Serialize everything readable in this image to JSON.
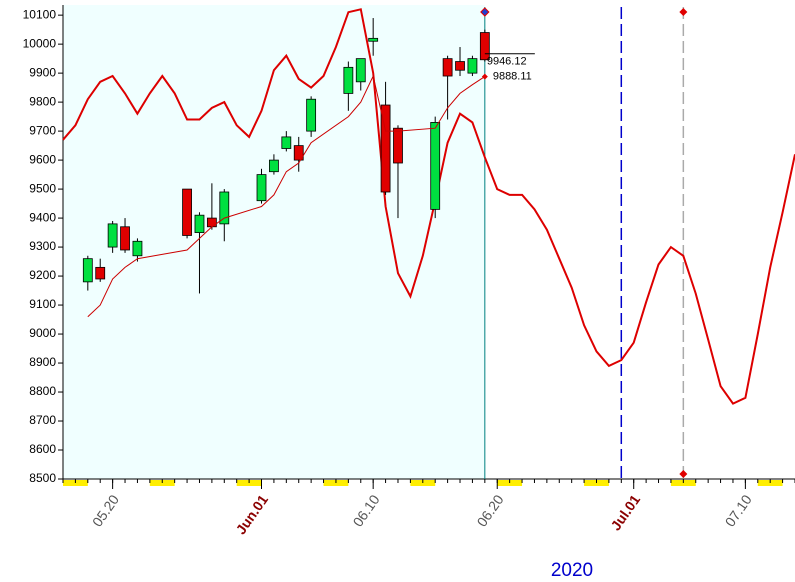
{
  "chart_data": {
    "type": "candlestick",
    "year_label": "2020",
    "xlim": [
      "2020-05-16",
      "2020-07-14"
    ],
    "ylim": [
      8500,
      10135
    ],
    "yticks": [
      8500,
      8600,
      8700,
      8800,
      8900,
      9000,
      9100,
      9200,
      9300,
      9400,
      9500,
      9600,
      9700,
      9800,
      9900,
      10000,
      10100
    ],
    "xticks": [
      {
        "value": "2020-05-20",
        "label": "05.20",
        "color": "#555555"
      },
      {
        "value": "2020-06-01",
        "label": "Jun.01",
        "color": "#8b0000"
      },
      {
        "value": "2020-06-10",
        "label": "06.10",
        "color": "#555555"
      },
      {
        "value": "2020-06-20",
        "label": "06.20",
        "color": "#555555"
      },
      {
        "value": "2020-07-01",
        "label": "Jul.01",
        "color": "#8b0000"
      },
      {
        "value": "2020-07-10",
        "label": "07.10",
        "color": "#555555"
      }
    ],
    "candles": {
      "up_color": "#00e040",
      "down_color": "#e00000",
      "x": [
        "2020-05-18",
        "2020-05-19",
        "2020-05-20",
        "2020-05-21",
        "2020-05-22",
        "2020-05-26",
        "2020-05-27",
        "2020-05-28",
        "2020-05-29",
        "2020-06-01",
        "2020-06-02",
        "2020-06-03",
        "2020-06-04",
        "2020-06-05",
        "2020-06-08",
        "2020-06-09",
        "2020-06-10",
        "2020-06-11",
        "2020-06-12",
        "2020-06-15",
        "2020-06-16",
        "2020-06-17",
        "2020-06-18",
        "2020-06-19"
      ],
      "open": [
        9180,
        9230,
        9300,
        9370,
        9270,
        9500,
        9350,
        9400,
        9380,
        9460,
        9560,
        9640,
        9650,
        9700,
        9830,
        9870,
        10010,
        9790,
        9710,
        9430,
        9950,
        9940,
        9900,
        10040
      ],
      "high": [
        9270,
        9260,
        9390,
        9400,
        9330,
        9500,
        9420,
        9520,
        9500,
        9570,
        9620,
        9700,
        9680,
        9820,
        9940,
        9950,
        10090,
        9870,
        9720,
        9750,
        9960,
        9990,
        9960,
        10050
      ],
      "low": [
        9150,
        9180,
        9280,
        9280,
        9250,
        9330,
        9140,
        9360,
        9320,
        9450,
        9550,
        9630,
        9560,
        9680,
        9770,
        9840,
        9960,
        9480,
        9400,
        9400,
        9740,
        9890,
        9890,
        9940
      ],
      "close": [
        9260,
        9190,
        9380,
        9290,
        9320,
        9340,
        9410,
        9370,
        9490,
        9550,
        9600,
        9680,
        9600,
        9810,
        9920,
        9950,
        10020,
        9490,
        9590,
        9730,
        9890,
        9910,
        9950,
        9946.12
      ]
    },
    "ma": {
      "color": "#cc0000",
      "values": [
        9060,
        9100,
        9190,
        9230,
        9260,
        9290,
        9330,
        9370,
        9400,
        9440,
        9480,
        9560,
        9590,
        9660,
        9750,
        9800,
        9890,
        9700,
        9700,
        9710,
        9780,
        9830,
        9860,
        9888.11
      ]
    },
    "cycle": {
      "color": "#dd0000",
      "x": [
        "2020-05-16",
        "2020-05-17",
        "2020-05-18",
        "2020-05-19",
        "2020-05-20",
        "2020-05-21",
        "2020-05-22",
        "2020-05-23",
        "2020-05-24",
        "2020-05-25",
        "2020-05-26",
        "2020-05-27",
        "2020-05-28",
        "2020-05-29",
        "2020-05-30",
        "2020-05-31",
        "2020-06-01",
        "2020-06-02",
        "2020-06-03",
        "2020-06-04",
        "2020-06-05",
        "2020-06-06",
        "2020-06-07",
        "2020-06-08",
        "2020-06-09",
        "2020-06-10",
        "2020-06-11",
        "2020-06-12",
        "2020-06-13",
        "2020-06-14",
        "2020-06-15",
        "2020-06-16",
        "2020-06-17",
        "2020-06-18",
        "2020-06-19",
        "2020-06-20",
        "2020-06-21",
        "2020-06-22",
        "2020-06-23",
        "2020-06-24",
        "2020-06-25",
        "2020-06-26",
        "2020-06-27",
        "2020-06-28",
        "2020-06-29",
        "2020-06-30",
        "2020-07-01",
        "2020-07-02",
        "2020-07-03",
        "2020-07-04",
        "2020-07-05",
        "2020-07-06",
        "2020-07-07",
        "2020-07-08",
        "2020-07-09",
        "2020-07-10",
        "2020-07-11",
        "2020-07-12",
        "2020-07-13",
        "2020-07-14"
      ],
      "values": [
        9670,
        9720,
        9810,
        9870,
        9890,
        9830,
        9760,
        9830,
        9890,
        9830,
        9740,
        9740,
        9780,
        9800,
        9720,
        9680,
        9770,
        9910,
        9960,
        9880,
        9850,
        9890,
        9990,
        10110,
        10120,
        9900,
        9440,
        9210,
        9130,
        9270,
        9460,
        9660,
        9760,
        9730,
        9610,
        9500,
        9480,
        9480,
        9430,
        9360,
        9260,
        9160,
        9030,
        8940,
        8890,
        8910,
        8970,
        9110,
        9240,
        9300,
        9270,
        9140,
        8980,
        8820,
        8760,
        8780,
        9000,
        9230,
        9420,
        9620
      ]
    },
    "vlines": [
      {
        "x": "2020-06-19",
        "color": "#008080",
        "dash": false,
        "marker": "#2040d0"
      },
      {
        "x": "2020-06-30",
        "color": "#0000cc",
        "dash": true,
        "marker": null
      },
      {
        "x": "2020-07-05",
        "color": "#aaaaaa",
        "dash": true,
        "marker": "#e00000"
      }
    ]
  }
}
